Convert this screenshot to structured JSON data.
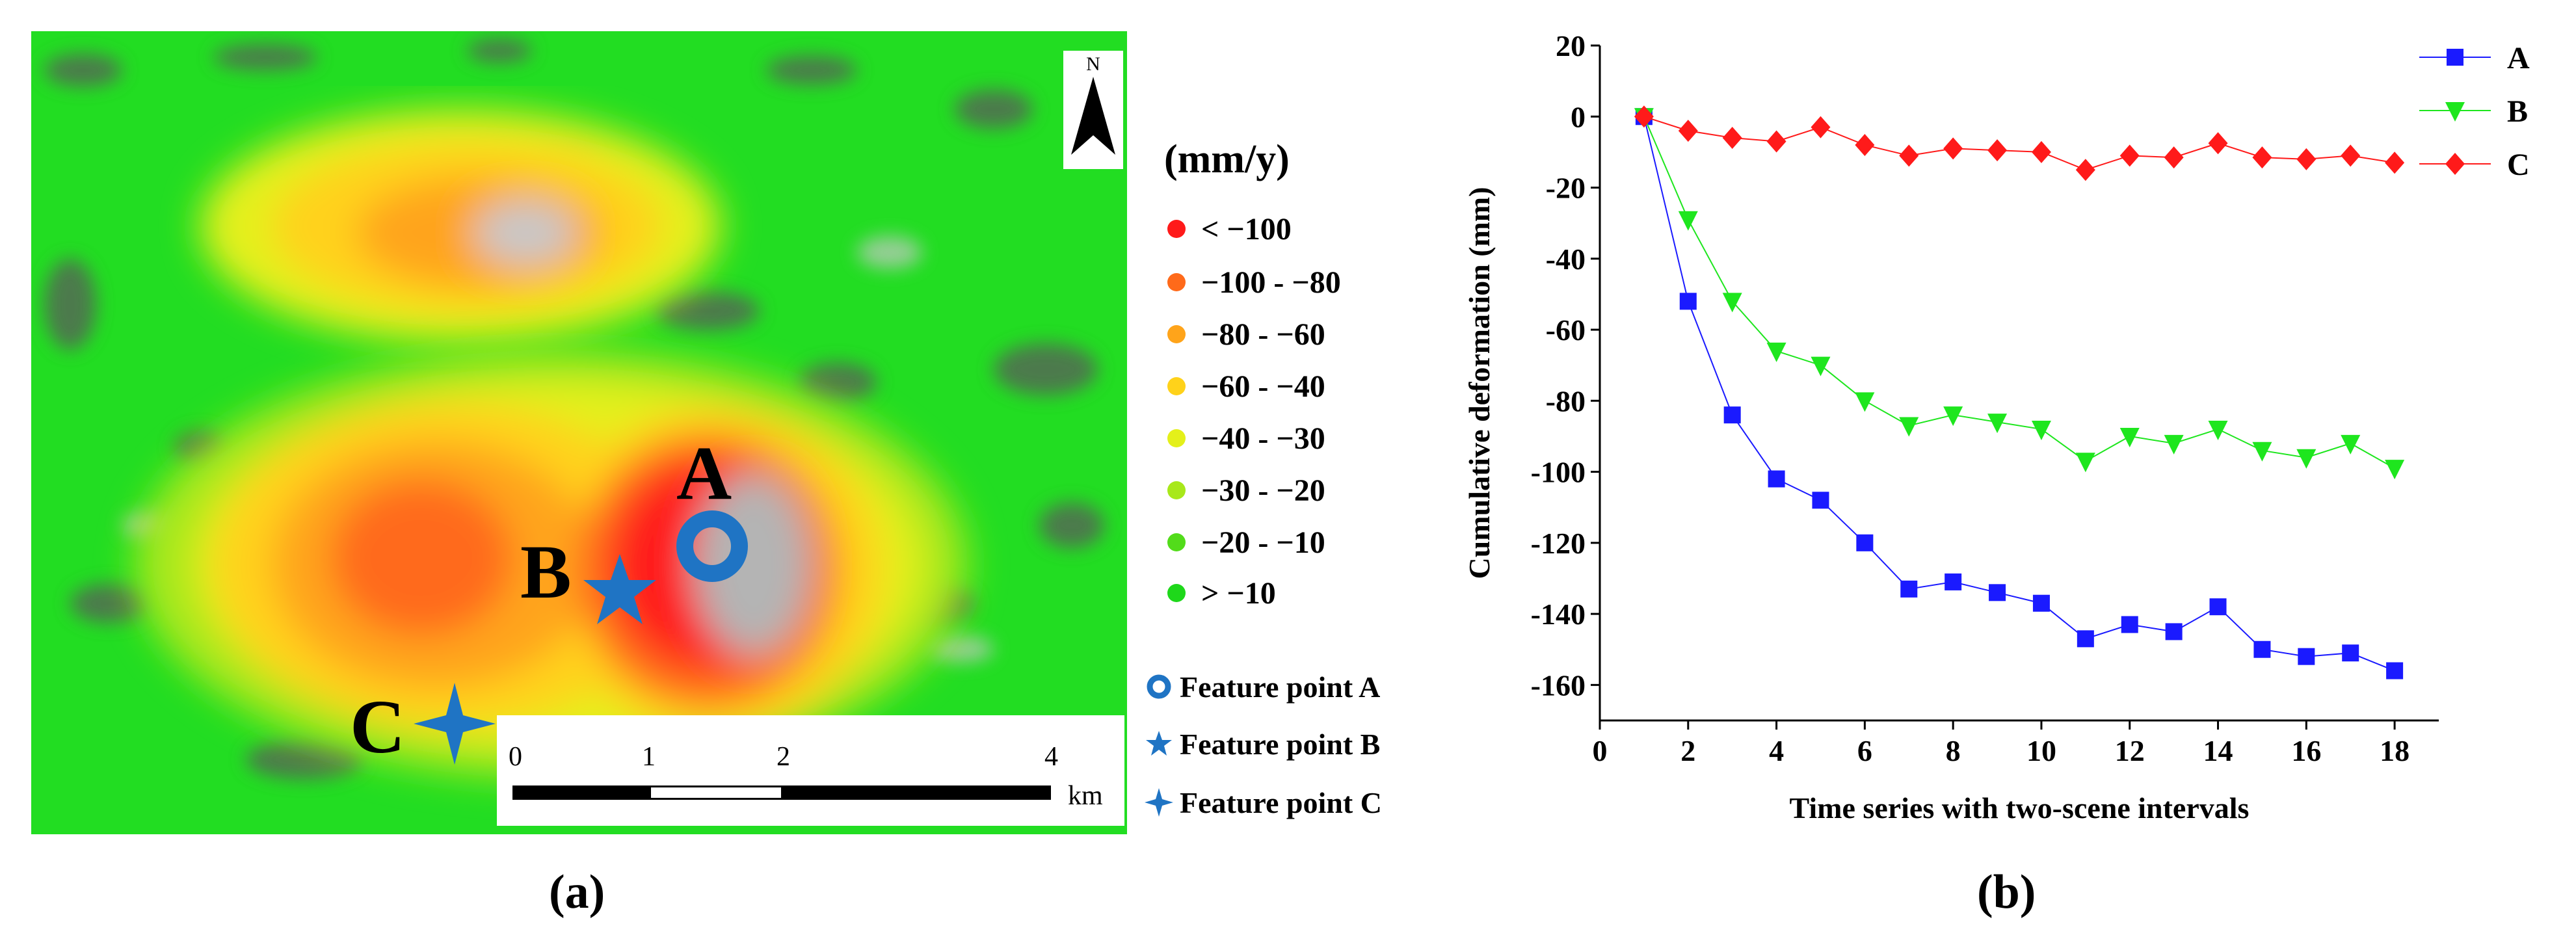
{
  "panel_a": {
    "label": "(a)",
    "north_letter": "N",
    "legend_title": "(mm/y)",
    "legend_items": [
      {
        "label": "< −100",
        "color": "#ff1a1a"
      },
      {
        "label": "−100 - −80",
        "color": "#ff6a1a"
      },
      {
        "label": "−80 - −60",
        "color": "#ffa41a"
      },
      {
        "label": "−60 - −40",
        "color": "#ffd21a"
      },
      {
        "label": "−40 - −30",
        "color": "#e4f01a"
      },
      {
        "label": "−30 - −20",
        "color": "#a8e81a"
      },
      {
        "label": "−20 - −10",
        "color": "#52dc1a"
      },
      {
        "label": "> −10",
        "color": "#1ed81a"
      }
    ],
    "feature_points": [
      {
        "label": "Feature point A",
        "marker": "circle-icon",
        "color": "#1f74c4"
      },
      {
        "label": "Feature point B",
        "marker": "star-icon",
        "color": "#1f74c4"
      },
      {
        "label": "Feature point C",
        "marker": "four-point-star-icon",
        "color": "#1f74c4"
      }
    ],
    "point_labels": {
      "a": "A",
      "b": "B",
      "c": "C"
    },
    "scale": {
      "ticks": [
        "0",
        "1",
        "2",
        "4"
      ],
      "unit": "km"
    }
  },
  "panel_b": {
    "label": "(b)"
  },
  "chart_data": {
    "type": "line",
    "xlabel": "Time series with two-scene intervals",
    "ylabel": "Cumulative deformation (mm)",
    "xlim": [
      0,
      19
    ],
    "ylim": [
      -170,
      20
    ],
    "xticks": [
      "0",
      "2",
      "4",
      "6",
      "8",
      "10",
      "12",
      "14",
      "16",
      "18"
    ],
    "yticks": [
      "20",
      "0",
      "-20",
      "-40",
      "-60",
      "-80",
      "-100",
      "-120",
      "-140",
      "-160"
    ],
    "x": [
      1,
      2,
      3,
      4,
      5,
      6,
      7,
      8,
      9,
      10,
      11,
      12,
      13,
      14,
      15,
      16,
      17,
      18
    ],
    "legend_position": "top-right",
    "series": [
      {
        "name": "A",
        "color": "#1a1aff",
        "marker": "square",
        "values": [
          0,
          -52,
          -84,
          -102,
          -108,
          -120,
          -133,
          -131,
          -134,
          -137,
          -147,
          -143,
          -145,
          -138,
          -150,
          -152,
          -151,
          -156
        ]
      },
      {
        "name": "B",
        "color": "#1ee61e",
        "marker": "triangle-down",
        "values": [
          0,
          -29,
          -52,
          -66,
          -70,
          -80,
          -87,
          -84,
          -86,
          -88,
          -97,
          -90,
          -92,
          -88,
          -94,
          -96,
          -92,
          -99
        ]
      },
      {
        "name": "C",
        "color": "#ff1a1a",
        "marker": "diamond",
        "values": [
          0,
          -4,
          -6,
          -7,
          -3,
          -8,
          -11,
          -9,
          -9.5,
          -10,
          -15,
          -11,
          -11.5,
          -7.5,
          -11.5,
          -12,
          -11,
          -13
        ]
      }
    ]
  }
}
